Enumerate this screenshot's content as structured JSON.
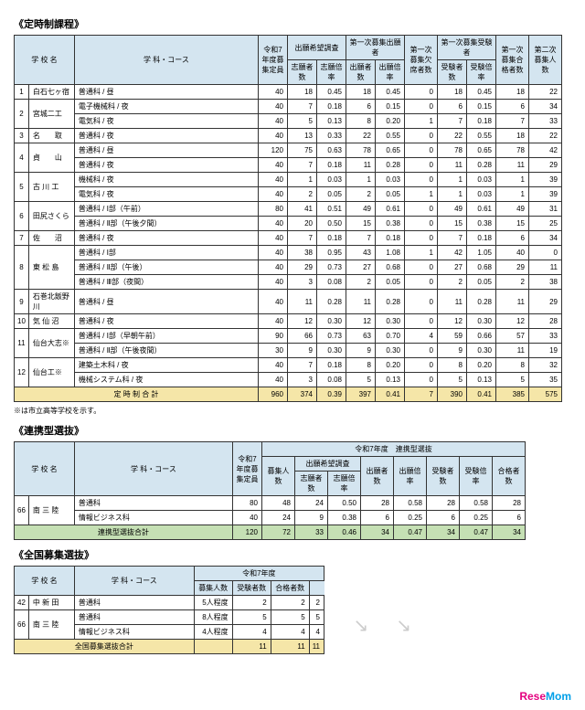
{
  "section1": {
    "title": "《定時制課程》",
    "headers": {
      "school": "学 校 名",
      "course": "学 科・コース",
      "r7": "令和7年度募集定員",
      "survey": "出願希望調査",
      "s1": "志願者数",
      "s2": "志願倍率",
      "first": "第一次募集出願者",
      "f1": "出願者数",
      "f2": "出願倍率",
      "absent": "第一次募集欠席者数",
      "exam": "第一次募集受験者",
      "e1": "受験者数",
      "e2": "受験倍率",
      "pass": "第一次募集合格者数",
      "second": "第二次募集人数"
    },
    "rows": [
      {
        "n": "1",
        "sch": "白石七ヶ宿",
        "c": "普通科 / 昼",
        "v": [
          "40",
          "18",
          "0.45",
          "18",
          "0.45",
          "0",
          "18",
          "0.45",
          "18",
          "22"
        ]
      },
      {
        "n": "2",
        "sch": "宮城二工",
        "c": "電子機械科 / 夜",
        "v": [
          "40",
          "7",
          "0.18",
          "6",
          "0.15",
          "0",
          "6",
          "0.15",
          "6",
          "34"
        ],
        "rs": 2
      },
      {
        "n": "",
        "sch": "",
        "c": "電気科 / 夜",
        "v": [
          "40",
          "5",
          "0.13",
          "8",
          "0.20",
          "1",
          "7",
          "0.18",
          "7",
          "33"
        ]
      },
      {
        "n": "3",
        "sch": "名　　取",
        "c": "普通科 / 夜",
        "v": [
          "40",
          "13",
          "0.33",
          "22",
          "0.55",
          "0",
          "22",
          "0.55",
          "18",
          "22"
        ]
      },
      {
        "n": "4",
        "sch": "貞　　山",
        "c": "普通科 / 昼",
        "v": [
          "120",
          "75",
          "0.63",
          "78",
          "0.65",
          "0",
          "78",
          "0.65",
          "78",
          "42"
        ],
        "rs": 2
      },
      {
        "n": "",
        "sch": "",
        "c": "普通科 / 夜",
        "v": [
          "40",
          "7",
          "0.18",
          "11",
          "0.28",
          "0",
          "11",
          "0.28",
          "11",
          "29"
        ]
      },
      {
        "n": "5",
        "sch": "古 川 工",
        "c": "機械科 / 夜",
        "v": [
          "40",
          "1",
          "0.03",
          "1",
          "0.03",
          "0",
          "1",
          "0.03",
          "1",
          "39"
        ],
        "rs": 2
      },
      {
        "n": "",
        "sch": "",
        "c": "電気科 / 夜",
        "v": [
          "40",
          "2",
          "0.05",
          "2",
          "0.05",
          "1",
          "1",
          "0.03",
          "1",
          "39"
        ]
      },
      {
        "n": "6",
        "sch": "田尻さくら",
        "c": "普通科 / Ⅰ部（午前）",
        "v": [
          "80",
          "41",
          "0.51",
          "49",
          "0.61",
          "0",
          "49",
          "0.61",
          "49",
          "31"
        ],
        "rs": 2
      },
      {
        "n": "",
        "sch": "",
        "c": "普通科 / Ⅱ部（午後夕間）",
        "v": [
          "40",
          "20",
          "0.50",
          "15",
          "0.38",
          "0",
          "15",
          "0.38",
          "15",
          "25"
        ]
      },
      {
        "n": "7",
        "sch": "佐　　沼",
        "c": "普通科 / 夜",
        "v": [
          "40",
          "7",
          "0.18",
          "7",
          "0.18",
          "0",
          "7",
          "0.18",
          "6",
          "34"
        ]
      },
      {
        "n": "8",
        "sch": "東 松 島",
        "c": "普通科 / Ⅰ部",
        "v": [
          "40",
          "38",
          "0.95",
          "43",
          "1.08",
          "1",
          "42",
          "1.05",
          "40",
          "0"
        ],
        "rs": 3
      },
      {
        "n": "",
        "sch": "",
        "c": "普通科 / Ⅱ部（午後）",
        "v": [
          "40",
          "29",
          "0.73",
          "27",
          "0.68",
          "0",
          "27",
          "0.68",
          "29",
          "11"
        ]
      },
      {
        "n": "",
        "sch": "",
        "c": "普通科 / Ⅲ部（夜間）",
        "v": [
          "40",
          "3",
          "0.08",
          "2",
          "0.05",
          "0",
          "2",
          "0.05",
          "2",
          "38"
        ]
      },
      {
        "n": "9",
        "sch": "石巻北飯野川",
        "c": "普通科 / 昼",
        "v": [
          "40",
          "11",
          "0.28",
          "11",
          "0.28",
          "0",
          "11",
          "0.28",
          "11",
          "29"
        ]
      },
      {
        "n": "10",
        "sch": "気 仙 沼",
        "c": "普通科 / 夜",
        "v": [
          "40",
          "12",
          "0.30",
          "12",
          "0.30",
          "0",
          "12",
          "0.30",
          "12",
          "28"
        ]
      },
      {
        "n": "11",
        "sch": "仙台大志※",
        "c": "普通科 / Ⅰ部（早朝午前）",
        "v": [
          "90",
          "66",
          "0.73",
          "63",
          "0.70",
          "4",
          "59",
          "0.66",
          "57",
          "33"
        ],
        "rs": 2
      },
      {
        "n": "",
        "sch": "",
        "c": "普通科 / Ⅱ部（午後夜間）",
        "v": [
          "30",
          "9",
          "0.30",
          "9",
          "0.30",
          "0",
          "9",
          "0.30",
          "11",
          "19"
        ]
      },
      {
        "n": "12",
        "sch": "仙台工※",
        "c": "建築土木科 / 夜",
        "v": [
          "40",
          "7",
          "0.18",
          "8",
          "0.20",
          "0",
          "8",
          "0.20",
          "8",
          "32"
        ],
        "rs": 2
      },
      {
        "n": "",
        "sch": "",
        "c": "機械システム科 / 夜",
        "v": [
          "40",
          "3",
          "0.08",
          "5",
          "0.13",
          "0",
          "5",
          "0.13",
          "5",
          "35"
        ]
      }
    ],
    "total": {
      "label": "定 時 制 合 計",
      "v": [
        "960",
        "374",
        "0.39",
        "397",
        "0.41",
        "7",
        "390",
        "0.41",
        "385",
        "575"
      ]
    },
    "note": "※は市立高等学校を示す。"
  },
  "section2": {
    "title": "《連携型選抜》",
    "headers": {
      "school": "学 校 名",
      "course": "学 科・コース",
      "r7": "令和7年度募集定員",
      "year": "令和7年度　連携型選抜",
      "b": "募集人数",
      "survey": "出願希望調査",
      "s1": "志願者数",
      "s2": "志願倍率",
      "f1": "出願者数",
      "f2": "出願倍率",
      "e1": "受験者数",
      "e2": "受験倍率",
      "p": "合格者数"
    },
    "rows": [
      {
        "n": "66",
        "sch": "南 三 陸",
        "c": "普通科",
        "v": [
          "80",
          "48",
          "24",
          "0.50",
          "28",
          "0.58",
          "28",
          "0.58",
          "28"
        ],
        "rs": 2
      },
      {
        "n": "",
        "sch": "",
        "c": "情報ビジネス科",
        "v": [
          "40",
          "24",
          "9",
          "0.38",
          "6",
          "0.25",
          "6",
          "0.25",
          "6"
        ]
      }
    ],
    "total": {
      "label": "連携型選抜合計",
      "v": [
        "120",
        "72",
        "33",
        "0.46",
        "34",
        "0.47",
        "34",
        "0.47",
        "34"
      ]
    }
  },
  "section3": {
    "title": "《全国募集選抜》",
    "headers": {
      "school": "学 校 名",
      "course": "学 科・コース",
      "year": "令和7年度",
      "b": "募集人数",
      "e": "受験者数",
      "p": "合格者数"
    },
    "rows": [
      {
        "n": "42",
        "sch": "中 新 田",
        "c": "普通科",
        "v": [
          "5人程度",
          "2",
          "2",
          "2"
        ]
      },
      {
        "n": "66",
        "sch": "南 三 陸",
        "c": "普通科",
        "v": [
          "8人程度",
          "5",
          "5",
          "5"
        ],
        "rs": 2
      },
      {
        "n": "",
        "sch": "",
        "c": "情報ビジネス科",
        "v": [
          "4人程度",
          "4",
          "4",
          "4"
        ]
      }
    ],
    "total": {
      "label": "全国募集選抜合計",
      "v": [
        "",
        "11",
        "11",
        "11"
      ]
    }
  },
  "logo": {
    "a": "Rese",
    "b": "Mom"
  }
}
